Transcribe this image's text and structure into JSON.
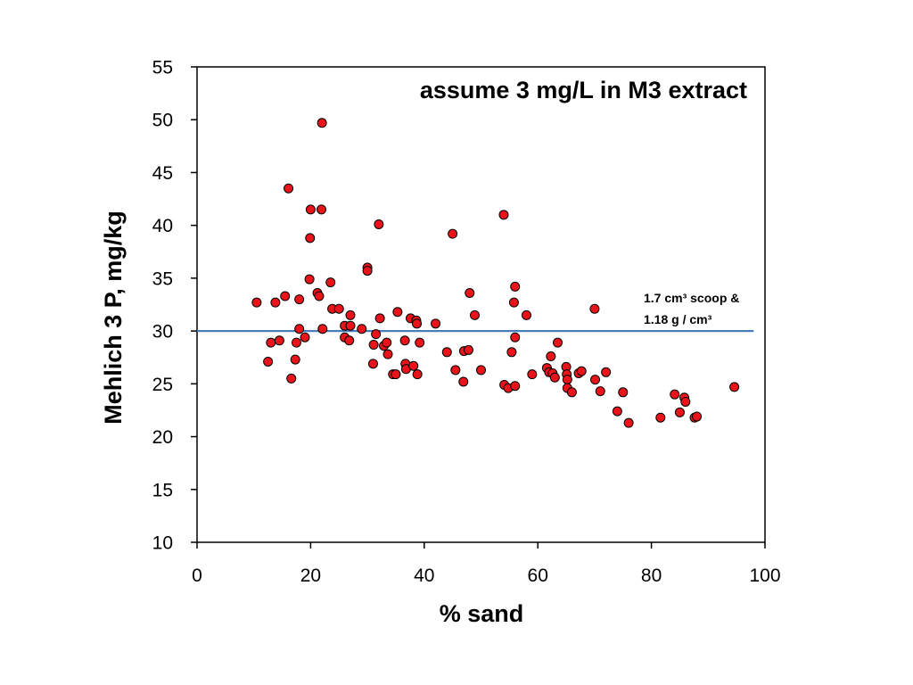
{
  "chart_data": {
    "type": "scatter",
    "title": "assume 3 mg/L in M3 extract",
    "xlabel": "% sand",
    "ylabel": "Mehlich 3 P, mg/kg",
    "xlim": [
      0,
      100
    ],
    "ylim": [
      10,
      55
    ],
    "xticks": [
      0,
      20,
      40,
      60,
      80,
      100
    ],
    "yticks": [
      10,
      15,
      20,
      25,
      30,
      35,
      40,
      45,
      50,
      55
    ],
    "grid": false,
    "marker_color": "#e8141a",
    "marker_edge": "#000000",
    "reference_line": {
      "y": 30,
      "x_start": 0,
      "x_end": 98,
      "color": "#4a7ebb",
      "label_line1": "1.7 cm³ scoop &",
      "label_line2": "1.18 g / cm³"
    },
    "points": [
      {
        "x": 10.5,
        "y": 32.7
      },
      {
        "x": 12.5,
        "y": 27.1
      },
      {
        "x": 13.0,
        "y": 28.9
      },
      {
        "x": 13.8,
        "y": 32.7
      },
      {
        "x": 14.5,
        "y": 29.1
      },
      {
        "x": 15.5,
        "y": 33.3
      },
      {
        "x": 16.1,
        "y": 43.5
      },
      {
        "x": 16.6,
        "y": 25.5
      },
      {
        "x": 17.3,
        "y": 27.3
      },
      {
        "x": 17.5,
        "y": 28.9
      },
      {
        "x": 18.0,
        "y": 33.0
      },
      {
        "x": 18.0,
        "y": 30.2
      },
      {
        "x": 19.0,
        "y": 29.4
      },
      {
        "x": 19.8,
        "y": 34.9
      },
      {
        "x": 19.9,
        "y": 38.8
      },
      {
        "x": 20.0,
        "y": 41.5
      },
      {
        "x": 21.2,
        "y": 33.6
      },
      {
        "x": 21.5,
        "y": 33.3
      },
      {
        "x": 21.9,
        "y": 41.5
      },
      {
        "x": 22.0,
        "y": 49.7
      },
      {
        "x": 22.1,
        "y": 30.2
      },
      {
        "x": 23.5,
        "y": 34.6
      },
      {
        "x": 23.8,
        "y": 32.1
      },
      {
        "x": 25.0,
        "y": 32.1
      },
      {
        "x": 26.0,
        "y": 30.5
      },
      {
        "x": 26.0,
        "y": 29.4
      },
      {
        "x": 26.8,
        "y": 29.1
      },
      {
        "x": 27.0,
        "y": 31.5
      },
      {
        "x": 27.0,
        "y": 30.5
      },
      {
        "x": 29.0,
        "y": 30.2
      },
      {
        "x": 30.0,
        "y": 36.0
      },
      {
        "x": 30.0,
        "y": 35.7
      },
      {
        "x": 31.0,
        "y": 26.9
      },
      {
        "x": 31.1,
        "y": 28.7
      },
      {
        "x": 31.5,
        "y": 29.7
      },
      {
        "x": 32.0,
        "y": 40.1
      },
      {
        "x": 32.2,
        "y": 31.2
      },
      {
        "x": 32.9,
        "y": 28.6
      },
      {
        "x": 33.4,
        "y": 28.9
      },
      {
        "x": 33.6,
        "y": 27.8
      },
      {
        "x": 34.5,
        "y": 25.9
      },
      {
        "x": 35.0,
        "y": 25.9
      },
      {
        "x": 35.3,
        "y": 31.8
      },
      {
        "x": 36.6,
        "y": 29.1
      },
      {
        "x": 36.7,
        "y": 26.9
      },
      {
        "x": 36.8,
        "y": 26.4
      },
      {
        "x": 37.6,
        "y": 31.2
      },
      {
        "x": 38.1,
        "y": 26.7
      },
      {
        "x": 38.6,
        "y": 31.0
      },
      {
        "x": 38.7,
        "y": 30.7
      },
      {
        "x": 38.8,
        "y": 25.9
      },
      {
        "x": 39.2,
        "y": 28.9
      },
      {
        "x": 42.0,
        "y": 30.7
      },
      {
        "x": 44.0,
        "y": 28.0
      },
      {
        "x": 45.0,
        "y": 39.2
      },
      {
        "x": 45.5,
        "y": 26.3
      },
      {
        "x": 46.9,
        "y": 25.2
      },
      {
        "x": 47.0,
        "y": 28.1
      },
      {
        "x": 47.8,
        "y": 28.2
      },
      {
        "x": 48.0,
        "y": 33.6
      },
      {
        "x": 48.9,
        "y": 31.5
      },
      {
        "x": 50.0,
        "y": 26.3
      },
      {
        "x": 54.0,
        "y": 41.0
      },
      {
        "x": 54.1,
        "y": 24.9
      },
      {
        "x": 54.8,
        "y": 24.6
      },
      {
        "x": 55.4,
        "y": 28.0
      },
      {
        "x": 55.8,
        "y": 32.7
      },
      {
        "x": 56.0,
        "y": 34.2
      },
      {
        "x": 56.0,
        "y": 29.4
      },
      {
        "x": 56.0,
        "y": 24.8
      },
      {
        "x": 58.0,
        "y": 31.5
      },
      {
        "x": 59.0,
        "y": 25.9
      },
      {
        "x": 61.6,
        "y": 26.5
      },
      {
        "x": 62.0,
        "y": 26.1
      },
      {
        "x": 62.3,
        "y": 27.6
      },
      {
        "x": 62.6,
        "y": 26.0
      },
      {
        "x": 63.0,
        "y": 25.6
      },
      {
        "x": 63.5,
        "y": 28.9
      },
      {
        "x": 65.0,
        "y": 26.6
      },
      {
        "x": 65.1,
        "y": 25.9
      },
      {
        "x": 65.2,
        "y": 25.4
      },
      {
        "x": 65.2,
        "y": 24.6
      },
      {
        "x": 66.0,
        "y": 24.2
      },
      {
        "x": 67.2,
        "y": 26.0
      },
      {
        "x": 67.7,
        "y": 26.2
      },
      {
        "x": 70.0,
        "y": 32.1
      },
      {
        "x": 70.1,
        "y": 25.4
      },
      {
        "x": 71.0,
        "y": 24.3
      },
      {
        "x": 72.0,
        "y": 26.1
      },
      {
        "x": 74.0,
        "y": 22.4
      },
      {
        "x": 75.0,
        "y": 24.2
      },
      {
        "x": 76.0,
        "y": 21.3
      },
      {
        "x": 81.6,
        "y": 21.8
      },
      {
        "x": 84.1,
        "y": 24.0
      },
      {
        "x": 85.0,
        "y": 22.3
      },
      {
        "x": 85.8,
        "y": 23.7
      },
      {
        "x": 86.0,
        "y": 23.3
      },
      {
        "x": 87.6,
        "y": 21.8
      },
      {
        "x": 88.0,
        "y": 21.9
      },
      {
        "x": 94.6,
        "y": 24.7
      }
    ]
  }
}
